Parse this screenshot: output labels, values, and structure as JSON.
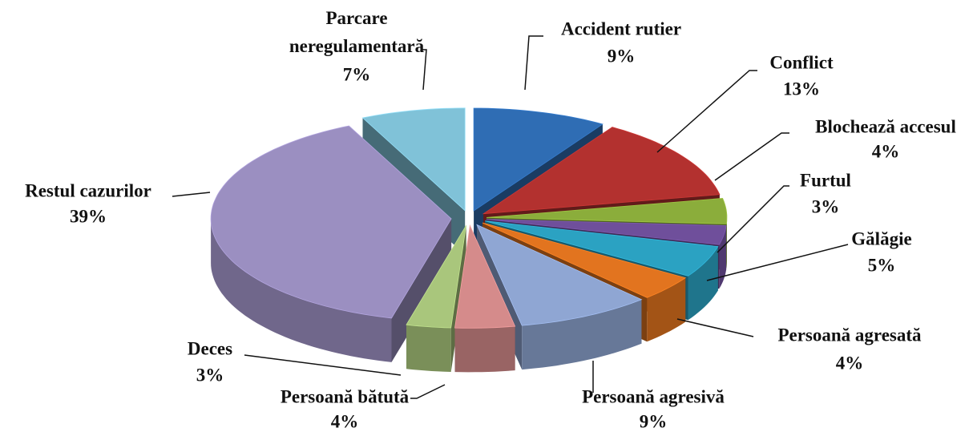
{
  "chart_data": {
    "type": "pie3d",
    "categories": [
      "Accident rutier",
      "Conflict",
      "Blochează accesul",
      "Furtul",
      "Gălăgie",
      "Persoană agresată",
      "Persoană agresivă",
      "Persoană bătută",
      "Deces",
      "Restul cazurilor",
      "Parcare neregulamentară"
    ],
    "values": [
      9,
      13,
      4,
      3,
      5,
      4,
      9,
      4,
      3,
      39,
      7
    ],
    "value_labels": [
      "9%",
      "13%",
      "4%",
      "3%",
      "5%",
      "4%",
      "9%",
      "4%",
      "3%",
      "39%",
      "7%"
    ],
    "colors": [
      "#2f6db4",
      "#b3312f",
      "#8bad3b",
      "#6f4f9b",
      "#2ba2c2",
      "#e2741f",
      "#8fa6d3",
      "#d58b8b",
      "#a9c67c",
      "#9b8fc1",
      "#80c2d8"
    ]
  }
}
